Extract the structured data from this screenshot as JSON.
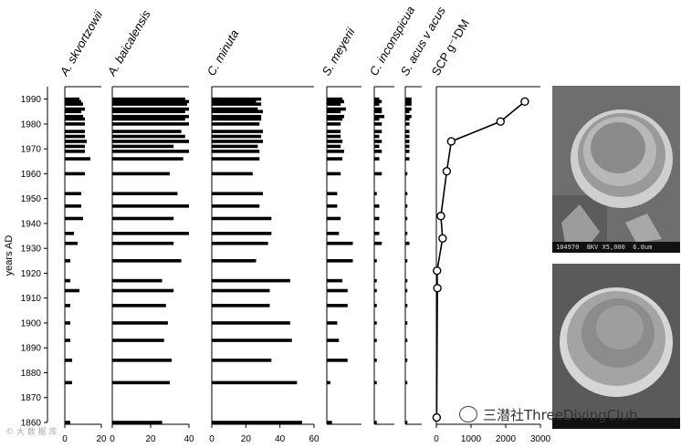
{
  "chart_data": {
    "type": "bar",
    "orientation": "horizontal",
    "ylabel": "years AD",
    "ylim": [
      1860,
      1995
    ],
    "y_ticks": [
      "1860",
      "1870",
      "1880",
      "1890",
      "1900",
      "1910",
      "1920",
      "1930",
      "1940",
      "1950",
      "1960",
      "1970",
      "1980",
      "1990"
    ],
    "years": [
      1860,
      1876,
      1885,
      1893,
      1900,
      1907,
      1913,
      1917,
      1925,
      1932,
      1936,
      1942,
      1947,
      1952,
      1960,
      1966,
      1969,
      1971,
      1973,
      1975,
      1977,
      1980,
      1982,
      1983,
      1985,
      1986,
      1988,
      1989,
      1990
    ],
    "series": [
      {
        "name": "A. skvortzowii",
        "xlim": [
          0,
          20
        ],
        "ticks": [
          "0",
          "20"
        ],
        "values": [
          3,
          4,
          4,
          3,
          3,
          3,
          8,
          3,
          3,
          7,
          5,
          10,
          9,
          9,
          11,
          14,
          11,
          11,
          12,
          11,
          11,
          11,
          11,
          10,
          9,
          11,
          10,
          9,
          8
        ]
      },
      {
        "name": "A. baicalensis",
        "xlim": [
          0,
          40
        ],
        "ticks": [
          "0",
          "20",
          "40"
        ],
        "values": [
          26,
          30,
          31,
          27,
          29,
          28,
          32,
          26,
          36,
          32,
          40,
          32,
          40,
          34,
          30,
          37,
          40,
          32,
          40,
          38,
          36,
          40,
          38,
          40,
          38,
          40,
          39,
          40,
          38
        ]
      },
      {
        "name": "C. minuta",
        "xlim": [
          0,
          60
        ],
        "ticks": [
          "0",
          "20",
          "40",
          "60"
        ],
        "values": [
          53,
          50,
          35,
          47,
          46,
          34,
          34,
          46,
          26,
          33,
          35,
          35,
          28,
          30,
          24,
          28,
          28,
          27,
          30,
          29,
          30,
          28,
          29,
          29,
          30,
          27,
          29,
          26,
          29
        ]
      },
      {
        "name": "S. meyerii",
        "xlim": [
          0,
          20
        ],
        "ticks": [],
        "values": [
          3,
          2,
          12,
          7,
          6,
          12,
          12,
          9,
          15,
          15,
          7,
          8,
          6,
          6,
          8,
          9,
          10,
          8,
          9,
          8,
          8,
          8,
          9,
          10,
          8,
          11,
          8,
          10,
          9
        ]
      },
      {
        "name": "C. inconspicua",
        "xlim": [
          0,
          8
        ],
        "ticks": [],
        "values": [
          1,
          1,
          1,
          1,
          1,
          1,
          1,
          1,
          1,
          3,
          2,
          2,
          2,
          1,
          3,
          2,
          3,
          2,
          3,
          2,
          3,
          3,
          2,
          4,
          3,
          3,
          2,
          3,
          2
        ]
      },
      {
        "name": "S. acus v acus",
        "xlim": [
          0,
          8
        ],
        "ticks": [],
        "values": [
          1,
          1,
          1,
          1,
          1,
          1,
          1,
          1,
          1,
          2,
          1,
          1,
          1,
          1,
          1,
          2,
          2,
          2,
          2,
          2,
          2,
          2,
          2,
          3,
          2,
          3,
          3,
          3,
          3
        ]
      }
    ],
    "scp": {
      "name": "SCP g⁻¹DM",
      "xlim": [
        0,
        3000
      ],
      "ticks": [
        "0",
        "1000",
        "2000",
        "3000"
      ],
      "points": [
        {
          "x": 10,
          "year": 1862
        },
        {
          "x": 30,
          "year": 1914
        },
        {
          "x": 20,
          "year": 1921
        },
        {
          "x": 180,
          "year": 1934
        },
        {
          "x": 130,
          "year": 1943
        },
        {
          "x": 300,
          "year": 1961
        },
        {
          "x": 430,
          "year": 1973
        },
        {
          "x": 1850,
          "year": 1981
        },
        {
          "x": 2550,
          "year": 1989
        }
      ]
    }
  },
  "micrographs": [
    {
      "label": "104970  8KV X5,000  6.0um"
    },
    {
      "label": ""
    }
  ],
  "watermark": {
    "text": "三潜社ThreeDivingClub"
  }
}
